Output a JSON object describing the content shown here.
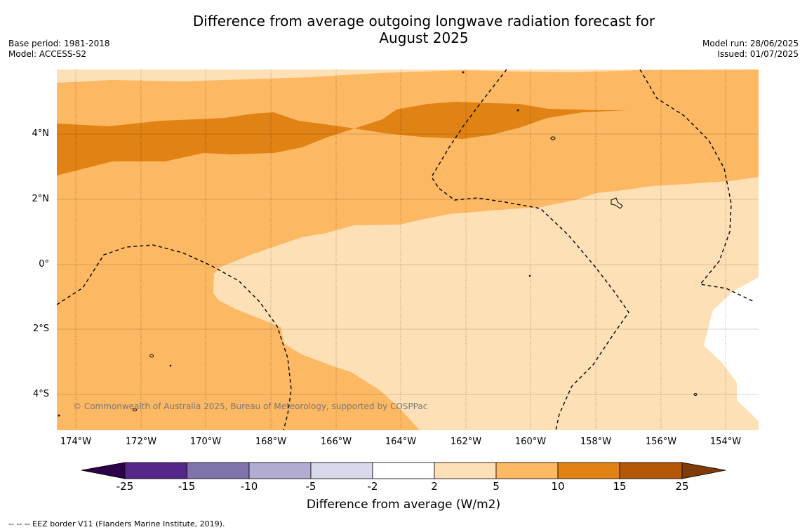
{
  "title_line1": "Difference from average outgoing longwave radiation forecast for",
  "title_line2": "August 2025",
  "meta_left": {
    "base_period": "Base period: 1981-2018",
    "model": "Model: ACCESS-S2"
  },
  "meta_right": {
    "model_run": "Model run: 28/06/2025",
    "issued": "Issued: 01/07/2025"
  },
  "lat_labels": [
    "4°N",
    "2°N",
    "0°",
    "2°S",
    "4°S"
  ],
  "lon_labels": [
    "174°W",
    "172°W",
    "170°W",
    "168°W",
    "166°W",
    "164°W",
    "162°W",
    "160°W",
    "158°W",
    "156°W",
    "154°W"
  ],
  "copyright": "© Commonwealth of Australia 2025, Bureau of Meteorology, supported by COSPPac",
  "colorbar": {
    "ticks": [
      "-25",
      "-15",
      "-10",
      "-5",
      "-2",
      "2",
      "5",
      "10",
      "15",
      "25"
    ],
    "title": "Difference from average (W/m2)",
    "colors": {
      "lt_-25": "#2d004b",
      "-25_-15": "#542788",
      "-15_-10": "#8073ac",
      "-10_-5": "#b2abd2",
      "-5_-2": "#d8daeb",
      "-2_2": "#ffffff",
      "2_5": "#fee0b6",
      "5_10": "#fdb863",
      "10_15": "#e08214",
      "15_25": "#b35806",
      "gt_25": "#7f3b08"
    }
  },
  "footnote": "--  --  -- EEZ border V11 (Flanders Marine Institute, 2019)."
}
